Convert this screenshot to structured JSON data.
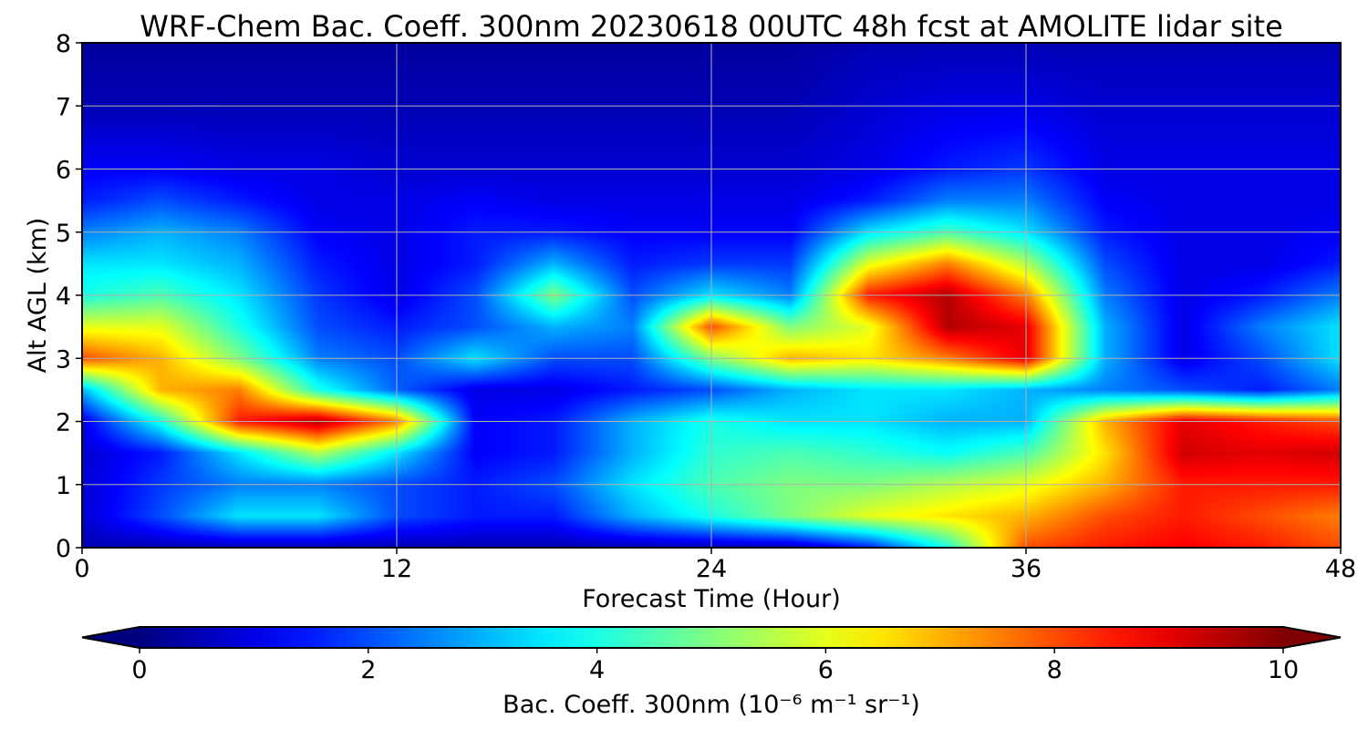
{
  "chart_data": {
    "type": "heatmap",
    "title": "WRF-Chem Bac. Coeff. 300nm  20230618 00UTC 48h fcst at AMOLITE lidar site",
    "xlabel": "Forecast Time (Hour)",
    "ylabel": "Alt AGL (km)",
    "xlim": [
      0,
      48
    ],
    "ylim": [
      0,
      8
    ],
    "xticks": [
      "0",
      "12",
      "24",
      "36",
      "48"
    ],
    "yticks": [
      "0",
      "1",
      "2",
      "3",
      "4",
      "5",
      "6",
      "7",
      "8"
    ],
    "grid": true,
    "colorscale": "jet",
    "colorbar": {
      "label": "Bac. Coeff. 300nm  (10⁻⁶ m⁻¹ sr⁻¹)",
      "range": [
        0,
        10
      ],
      "ticks": [
        "0",
        "2",
        "4",
        "6",
        "8",
        "10"
      ],
      "extend": "both",
      "orientation": "horizontal"
    },
    "time_hours": [
      0,
      3,
      6,
      9,
      12,
      15,
      18,
      21,
      24,
      27,
      30,
      33,
      36,
      39,
      42,
      45,
      48
    ],
    "altitude_km": [
      0,
      0.5,
      1,
      1.5,
      2,
      2.5,
      3,
      3.5,
      4,
      4.5,
      5,
      5.5,
      6,
      7,
      8
    ],
    "values": [
      [
        0.5,
        0.5,
        0.5,
        0.5,
        0.5,
        0.5,
        0.5,
        0.5,
        0.5,
        0.5,
        1.5,
        4.0,
        8.0,
        8.5,
        8.8,
        8.5,
        8.0
      ],
      [
        0.8,
        2.0,
        3.5,
        3.5,
        2.0,
        1.5,
        1.5,
        3.0,
        4.0,
        5.0,
        6.0,
        6.5,
        7.0,
        8.0,
        8.5,
        8.0,
        7.5
      ],
      [
        0.8,
        1.8,
        2.5,
        2.5,
        2.0,
        1.5,
        2.0,
        3.5,
        4.5,
        5.0,
        5.0,
        5.5,
        6.0,
        7.0,
        8.5,
        8.5,
        8.5
      ],
      [
        0.8,
        1.5,
        3.5,
        5.5,
        3.5,
        1.2,
        1.5,
        3.0,
        4.2,
        4.5,
        4.2,
        3.8,
        4.5,
        6.5,
        9.2,
        9.0,
        9.2
      ],
      [
        1.0,
        4.0,
        8.5,
        9.5,
        7.5,
        1.2,
        1.5,
        3.0,
        4.0,
        3.5,
        3.5,
        3.0,
        3.0,
        7.0,
        9.0,
        8.5,
        8.0
      ],
      [
        3.0,
        7.0,
        7.5,
        4.0,
        2.2,
        1.0,
        1.0,
        1.5,
        2.0,
        3.0,
        3.5,
        3.5,
        3.0,
        2.5,
        2.0,
        1.5,
        2.5
      ],
      [
        8.0,
        7.0,
        5.0,
        2.5,
        2.0,
        3.5,
        2.0,
        2.0,
        5.0,
        7.0,
        6.5,
        7.5,
        9.0,
        3.0,
        1.0,
        2.0,
        3.5
      ],
      [
        6.0,
        6.0,
        4.0,
        2.0,
        1.5,
        2.0,
        3.0,
        2.5,
        8.0,
        5.0,
        6.0,
        9.5,
        9.0,
        3.0,
        1.0,
        2.5,
        3.5
      ],
      [
        4.0,
        4.5,
        3.5,
        1.8,
        1.0,
        2.0,
        5.0,
        2.0,
        3.5,
        2.5,
        8.5,
        9.5,
        7.5,
        2.5,
        1.0,
        1.5,
        2.5
      ],
      [
        3.5,
        3.5,
        3.0,
        1.5,
        1.0,
        1.5,
        3.0,
        1.5,
        1.8,
        1.8,
        6.0,
        7.5,
        5.5,
        2.0,
        1.0,
        1.0,
        1.5
      ],
      [
        2.5,
        3.0,
        2.5,
        1.2,
        1.0,
        1.5,
        1.5,
        1.2,
        1.2,
        1.2,
        3.5,
        4.5,
        3.5,
        1.5,
        1.0,
        1.0,
        1.2
      ],
      [
        1.5,
        2.0,
        1.5,
        1.0,
        1.0,
        1.2,
        1.0,
        1.0,
        1.0,
        1.0,
        1.5,
        2.5,
        2.5,
        1.2,
        1.0,
        1.0,
        1.0
      ],
      [
        1.2,
        1.2,
        1.0,
        1.0,
        0.8,
        0.8,
        0.8,
        0.8,
        0.8,
        0.8,
        1.0,
        1.5,
        1.8,
        1.0,
        1.0,
        1.0,
        1.0
      ],
      [
        0.5,
        0.5,
        0.5,
        0.5,
        0.5,
        0.5,
        0.5,
        0.5,
        0.5,
        0.5,
        0.8,
        1.0,
        1.0,
        0.8,
        0.8,
        0.8,
        0.8
      ],
      [
        0.3,
        0.3,
        0.3,
        0.3,
        0.3,
        0.3,
        0.3,
        0.3,
        0.3,
        0.3,
        0.5,
        0.5,
        0.5,
        0.5,
        0.5,
        0.5,
        0.5
      ]
    ]
  }
}
